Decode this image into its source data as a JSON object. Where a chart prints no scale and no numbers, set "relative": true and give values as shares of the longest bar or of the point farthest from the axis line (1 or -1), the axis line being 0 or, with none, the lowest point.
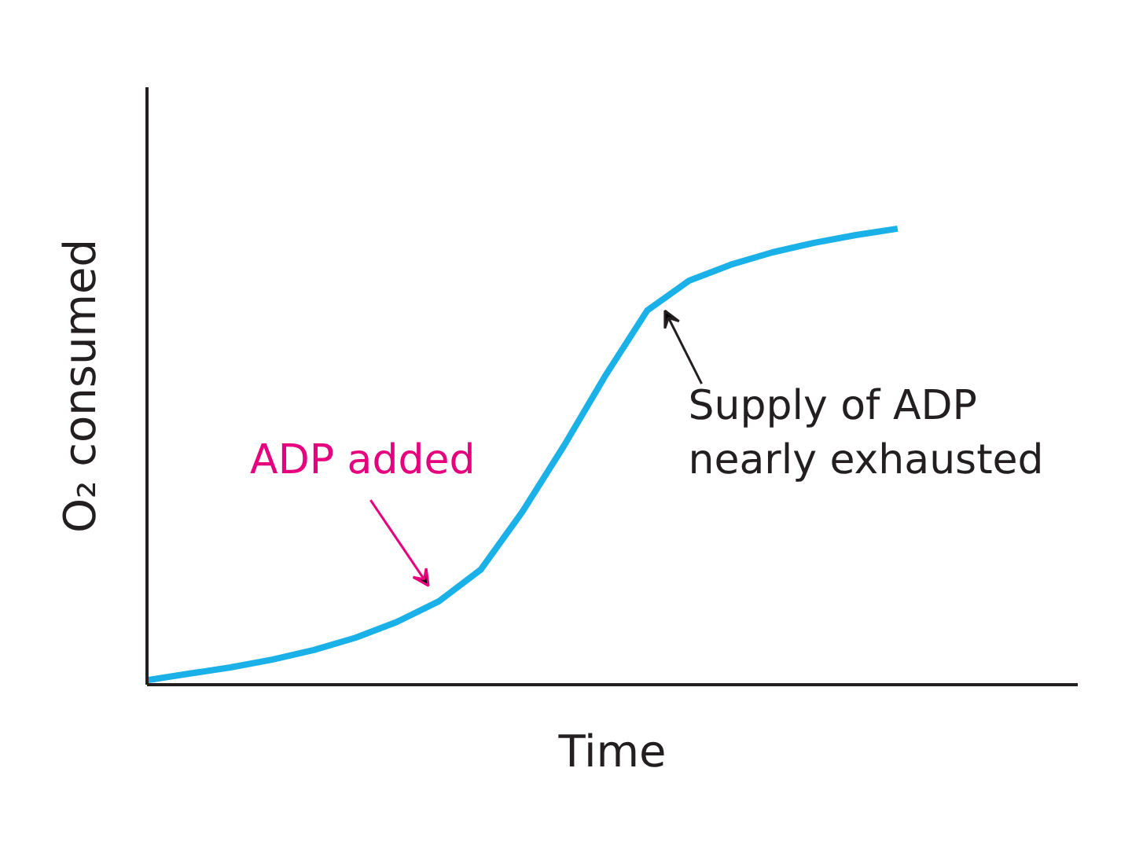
{
  "chart_data": {
    "type": "line",
    "relative": true,
    "xlabel": "Time",
    "ylabel": "O₂ consumed",
    "categories": [
      null,
      null,
      null,
      null,
      null,
      null,
      null,
      null,
      null,
      null,
      null,
      null,
      null,
      null,
      null,
      null,
      null,
      null,
      null
    ],
    "series": [
      {
        "color": "#1ab0e8",
        "values": [
          0.01,
          0.024,
          0.038,
          0.055,
          0.076,
          0.103,
          0.138,
          0.183,
          0.252,
          0.379,
          0.524,
          0.679,
          0.821,
          0.886,
          0.921,
          0.948,
          0.969,
          0.986,
          1
        ]
      }
    ],
    "annotations": [
      "ADP added",
      "Supply of ADP nearly exhausted"
    ],
    "grid": false,
    "marker": "none",
    "line_style": "solid"
  }
}
